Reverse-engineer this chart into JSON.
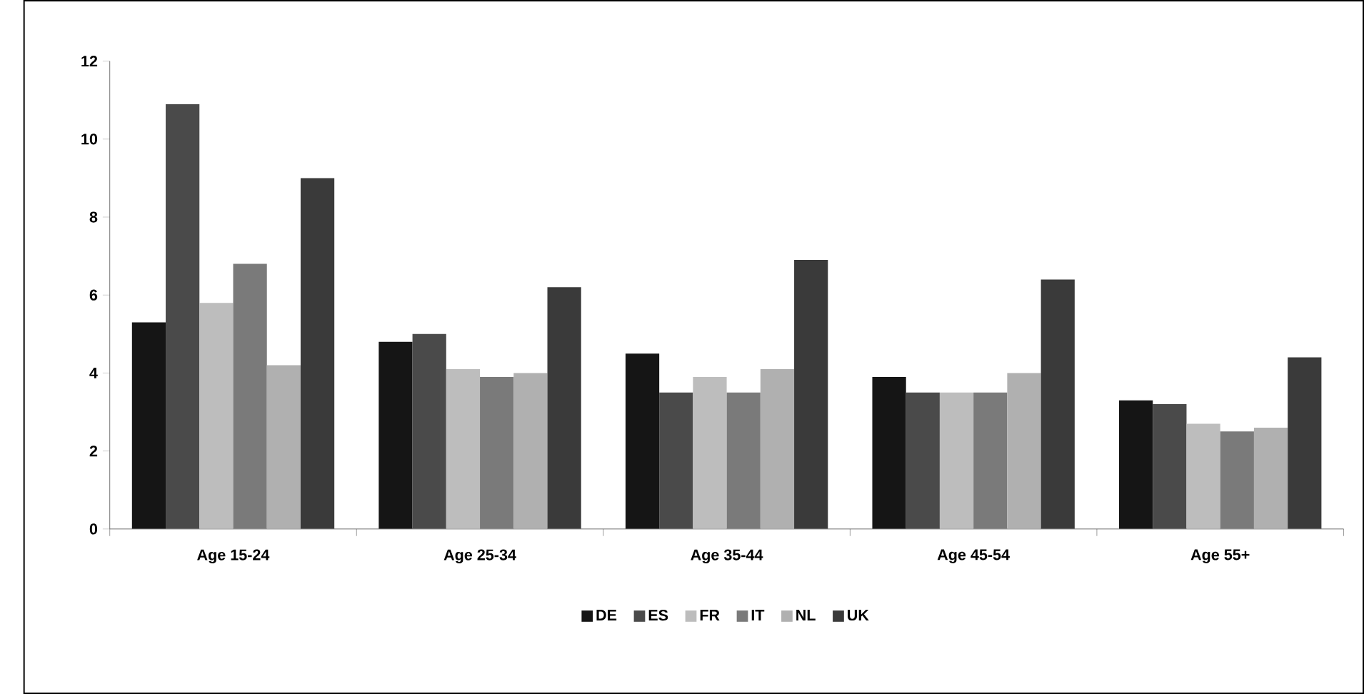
{
  "chart_data": {
    "type": "bar",
    "categories": [
      "Age 15-24",
      "Age 25-34",
      "Age 35-44",
      "Age 45-54",
      "Age 55+"
    ],
    "series": [
      {
        "name": "DE",
        "color": "#151515",
        "values": [
          5.3,
          4.8,
          4.5,
          3.9,
          3.3
        ]
      },
      {
        "name": "ES",
        "color": "#4a4a4a",
        "values": [
          10.9,
          5.0,
          3.5,
          3.5,
          3.2
        ]
      },
      {
        "name": "FR",
        "color": "#bdbdbd",
        "values": [
          5.8,
          4.1,
          3.9,
          3.5,
          2.7
        ]
      },
      {
        "name": "IT",
        "color": "#7a7a7a",
        "values": [
          6.8,
          3.9,
          3.5,
          3.5,
          2.5
        ]
      },
      {
        "name": "NL",
        "color": "#b0b0b0",
        "values": [
          4.2,
          4.0,
          4.1,
          4.0,
          2.6
        ]
      },
      {
        "name": "UK",
        "color": "#3a3a3a",
        "values": [
          9.0,
          6.2,
          6.9,
          6.4,
          4.4
        ]
      }
    ],
    "ylim": [
      0,
      12
    ],
    "yticks": [
      0,
      2,
      4,
      6,
      8,
      10,
      12
    ],
    "grid": false,
    "legend": "bottom"
  }
}
